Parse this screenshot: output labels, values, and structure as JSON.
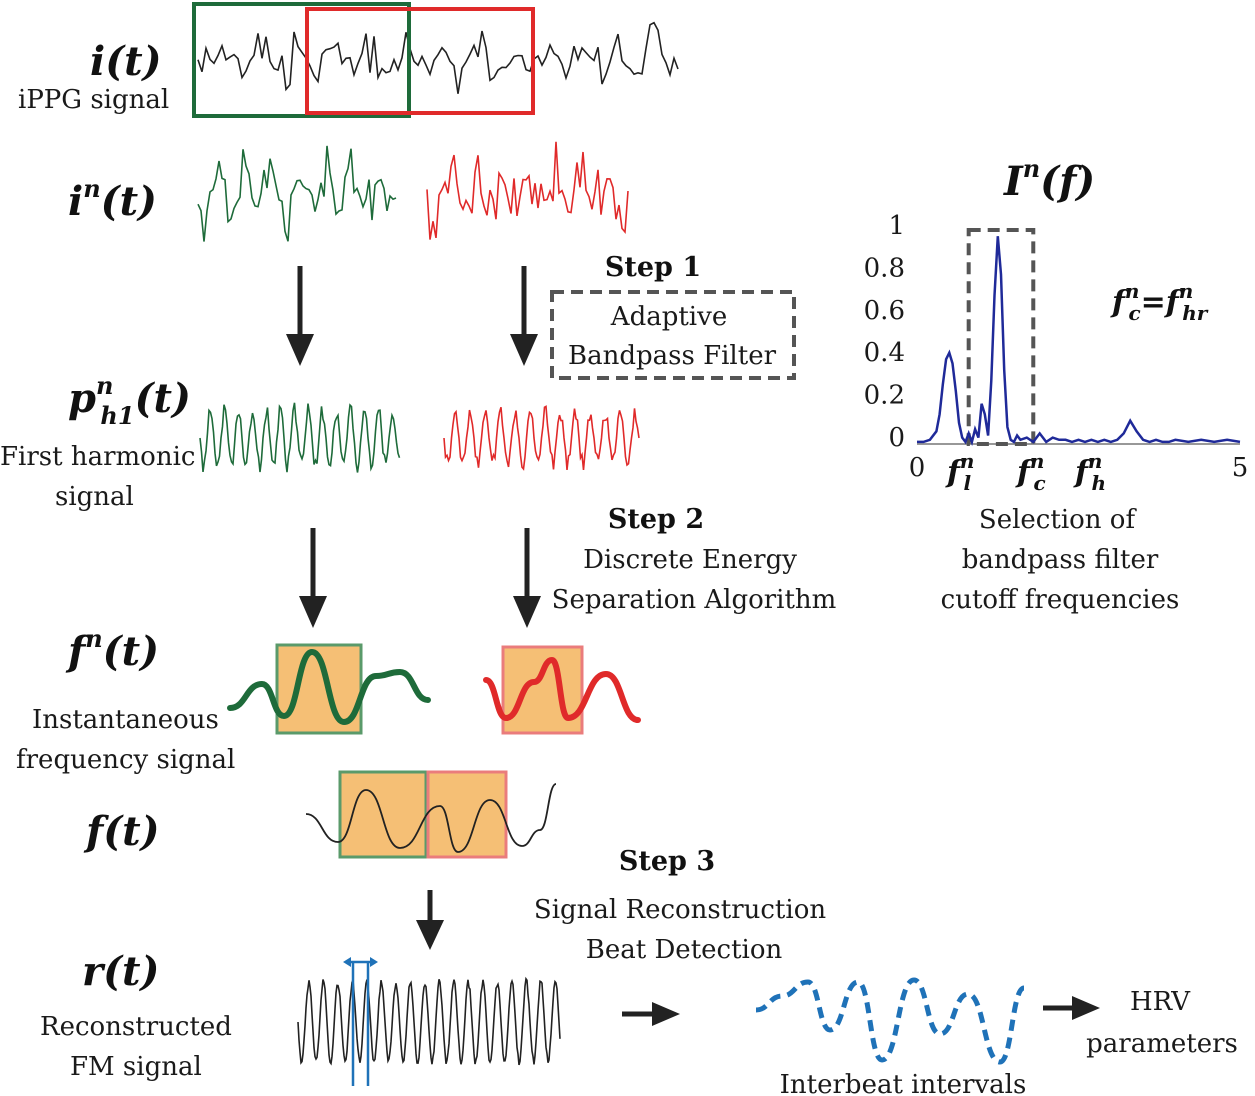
{
  "symbols": {
    "i": {
      "base": "i",
      "sup": "",
      "sub": "",
      "arg": "(t)"
    },
    "in": {
      "base": "i",
      "sup": "n",
      "sub": "",
      "arg": "(t)"
    },
    "p": {
      "base": "p",
      "sup": "n",
      "sub": "h1",
      "arg": "(t)"
    },
    "fn": {
      "base": "f",
      "sup": "n",
      "sub": "",
      "arg": "(t)"
    },
    "f": {
      "base": "f",
      "sup": "",
      "sub": "",
      "arg": "(t)"
    },
    "r": {
      "base": "r",
      "sup": "",
      "sub": "",
      "arg": "(t)"
    },
    "In": {
      "base": "I",
      "sup": "n",
      "sub": "",
      "arg": "(f)"
    }
  },
  "labels": {
    "ippg": "iPPG signal",
    "first_harmonic_1": "First harmonic",
    "first_harmonic_2": "signal",
    "inst_1": "Instantaneous",
    "inst_2": "frequency signal",
    "recon_1": "Reconstructed",
    "recon_2": "FM signal",
    "interbeat": "Interbeat intervals",
    "hrv_1": "HRV",
    "hrv_2": "parameters",
    "selection_1": "Selection of",
    "selection_2": "bandpass filter",
    "selection_3": "cutoff frequencies"
  },
  "steps": {
    "step1": {
      "title": "Step 1",
      "line1": "Adaptive",
      "line2": "Bandpass Filter"
    },
    "step2": {
      "title": "Step 2",
      "line1": "Discrete Energy",
      "line2": "Separation Algorithm"
    },
    "step3": {
      "title": "Step 3",
      "line1": "Signal Reconstruction",
      "line2": "Beat Detection"
    }
  },
  "spectrum": {
    "y_ticks": [
      "1",
      "0.8",
      "0.6",
      "0.4",
      "0.2",
      "0"
    ],
    "x_ticks": [
      "0",
      "5"
    ],
    "freq_labels": {
      "fl": {
        "base": "f",
        "sup": "n",
        "sub": "l"
      },
      "fc": {
        "base": "f",
        "sup": "n",
        "sub": "c"
      },
      "fh": {
        "base": "f",
        "sup": "n",
        "sub": "h"
      }
    },
    "equation": {
      "lhs_base": "f",
      "lhs_sup": "n",
      "lhs_sub": "c",
      "eq": "=",
      "rhs_base": "f",
      "rhs_sup": "n",
      "rhs_sub": "hr"
    }
  },
  "chart_data": {
    "type": "line",
    "xlim": [
      0,
      5
    ],
    "ylim": [
      0,
      1
    ],
    "series": [
      {
        "x": [
          0,
          0.1,
          0.2,
          0.3,
          0.35,
          0.4,
          0.45,
          0.5,
          0.55,
          0.6,
          0.65,
          0.7,
          0.75,
          0.8,
          0.85,
          0.9,
          0.95,
          1.0,
          1.05,
          1.1,
          1.15,
          1.2,
          1.25,
          1.3,
          1.35,
          1.4,
          1.45,
          1.5,
          1.55,
          1.6,
          1.7,
          1.8,
          1.9,
          2.0,
          2.1,
          2.2,
          2.3,
          2.4,
          2.5,
          2.6,
          2.7,
          2.8,
          2.9,
          3.0,
          3.1,
          3.2,
          3.3,
          3.4,
          3.5,
          3.6,
          3.7,
          3.8,
          3.9,
          4.0,
          4.2,
          4.4,
          4.6,
          4.8,
          5.0
        ],
        "y": [
          0.01,
          0.01,
          0.02,
          0.06,
          0.14,
          0.28,
          0.4,
          0.43,
          0.38,
          0.25,
          0.1,
          0.03,
          0.01,
          0.05,
          0.01,
          0.07,
          0.03,
          0.19,
          0.14,
          0.04,
          0.3,
          0.7,
          0.98,
          0.8,
          0.35,
          0.08,
          0.02,
          0.01,
          0.04,
          0.02,
          0.03,
          0.01,
          0.05,
          0.01,
          0.03,
          0.02,
          0.02,
          0.01,
          0.02,
          0.01,
          0.02,
          0.01,
          0.02,
          0.01,
          0.02,
          0.05,
          0.11,
          0.06,
          0.02,
          0.01,
          0.02,
          0.01,
          0.01,
          0.02,
          0.01,
          0.02,
          0.01,
          0.02,
          0.01
        ]
      }
    ],
    "bands": [
      {
        "name": "",
        "x0": 0.8,
        "x1": 1.8
      }
    ],
    "color": "#1f2a99"
  },
  "colors": {
    "green": "#1e6b3a",
    "red": "#e02a2a",
    "black": "#222222",
    "blue": "#1f72b8",
    "orange": "#f4b866",
    "dash": "#555555"
  }
}
